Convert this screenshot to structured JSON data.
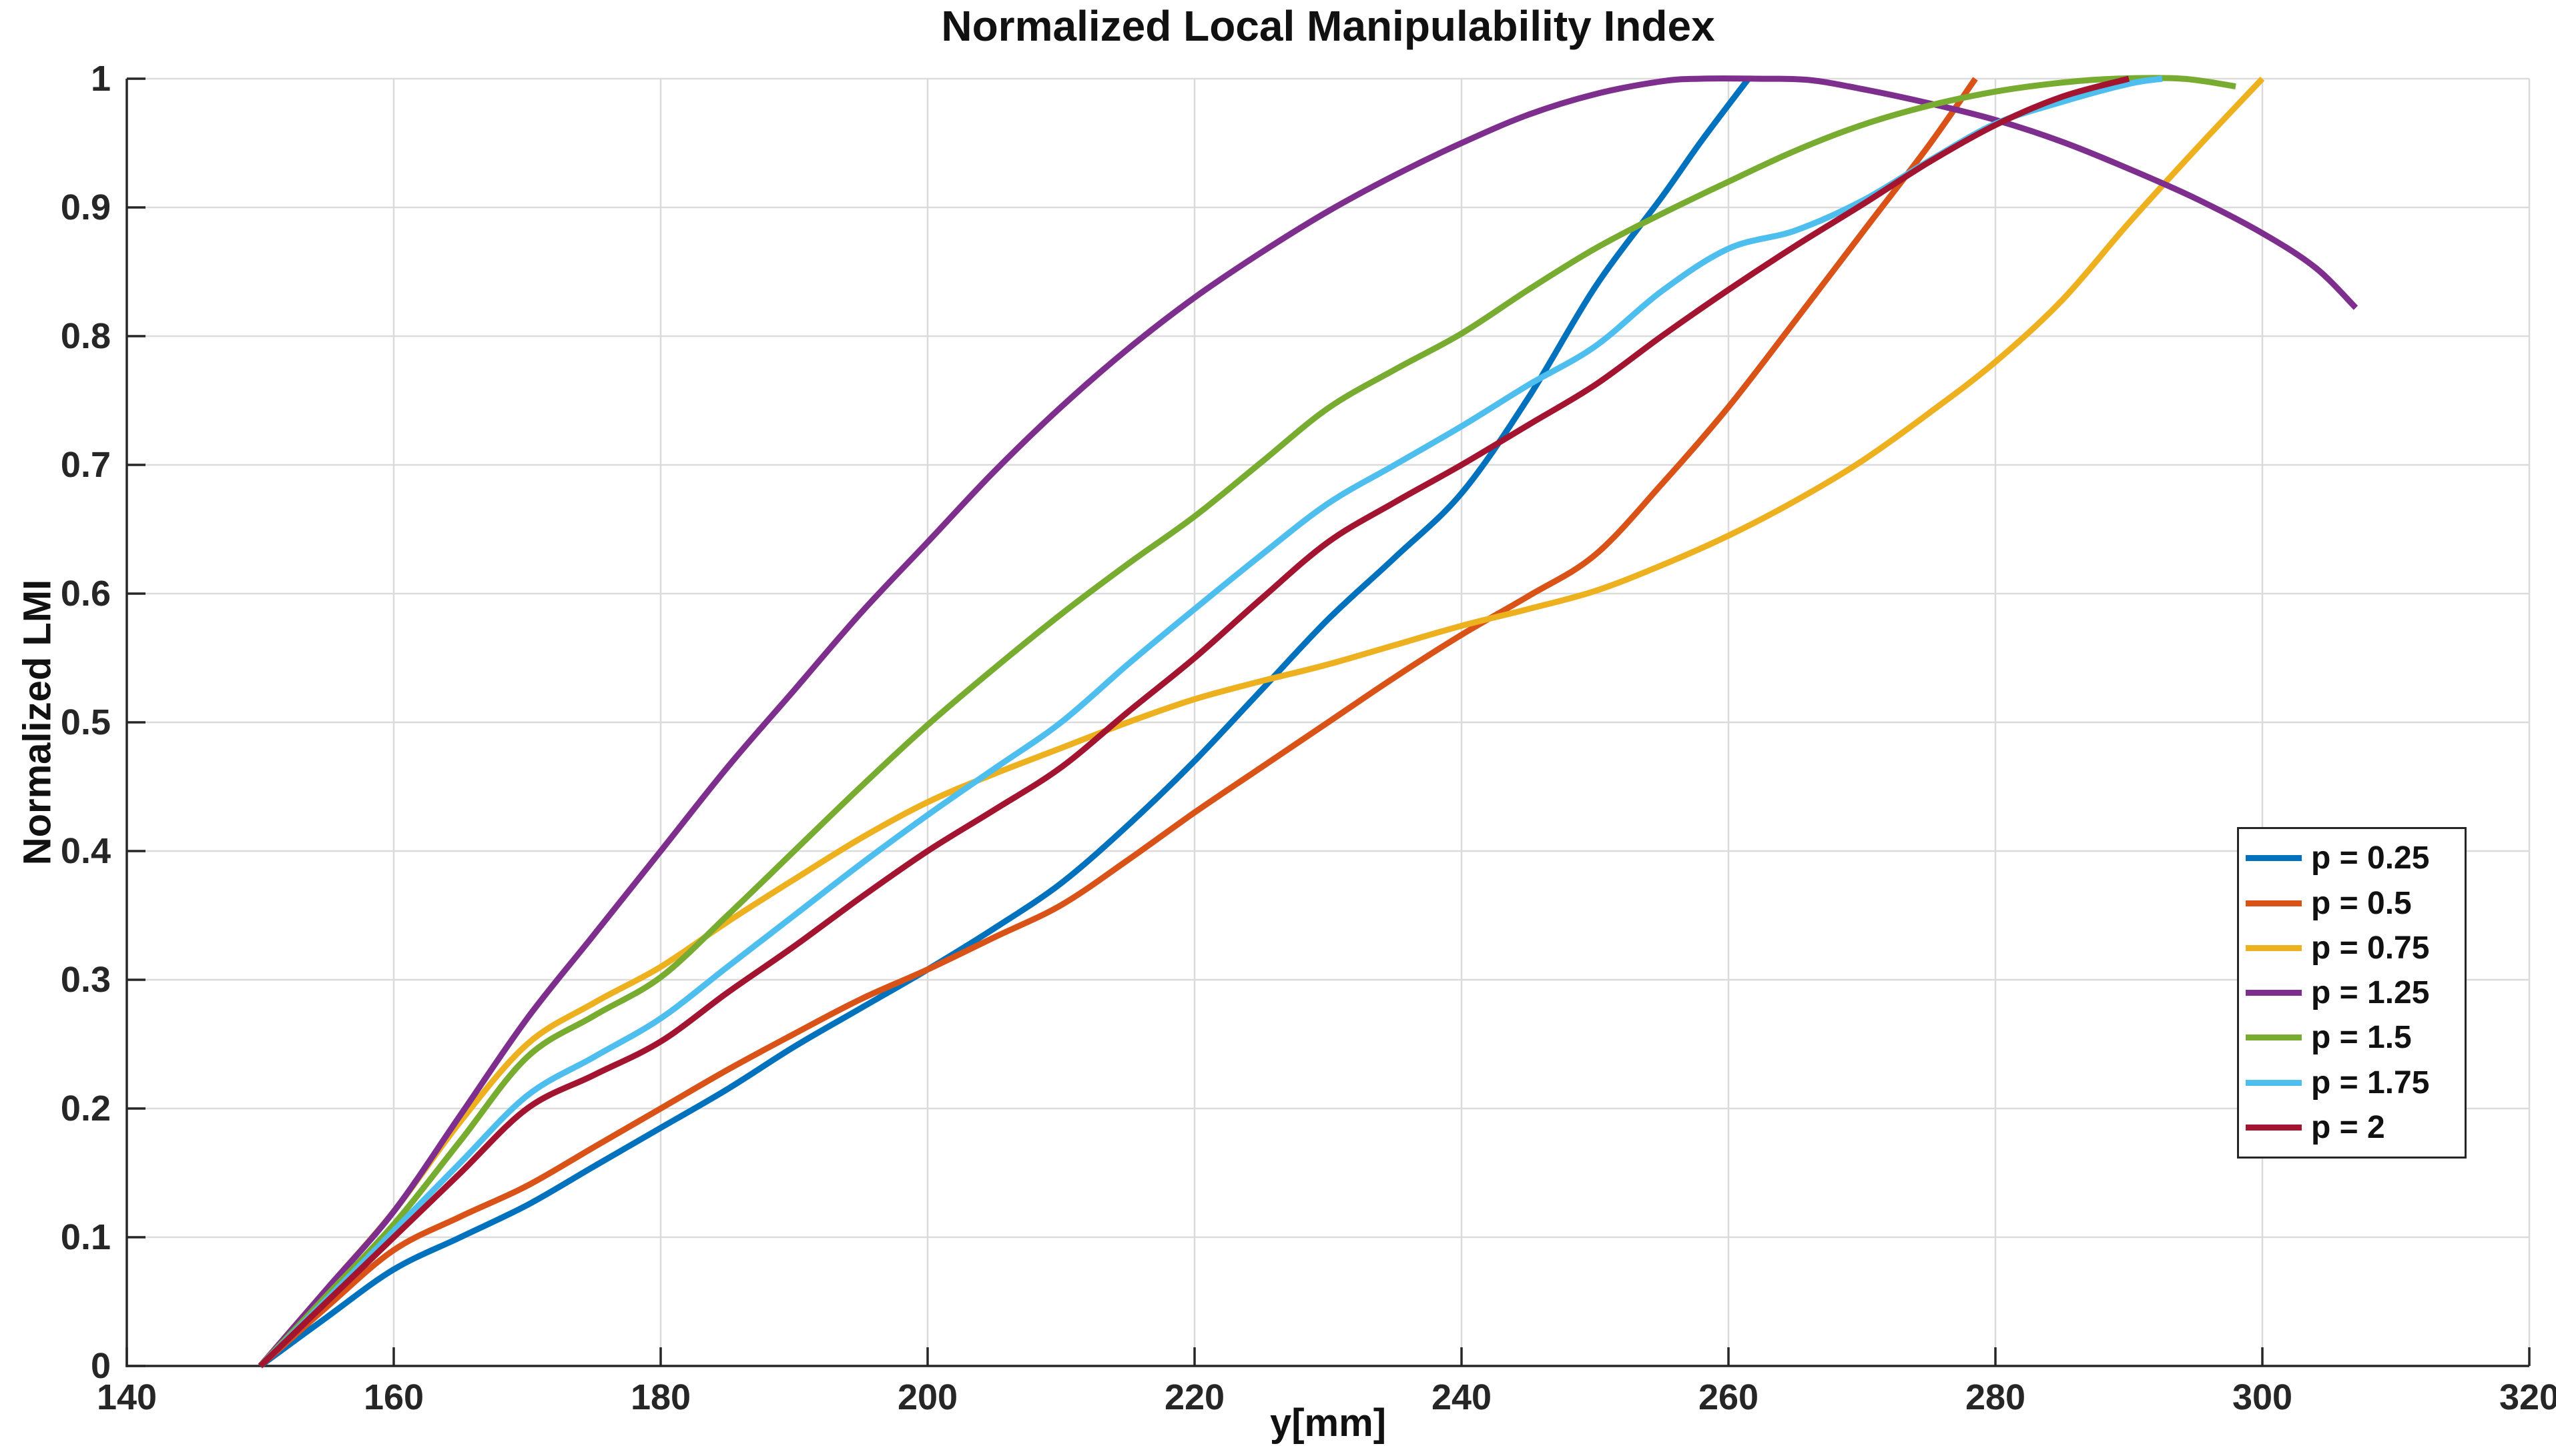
{
  "chart_data": {
    "type": "line",
    "title": "Normalized Local Manipulability Index",
    "xlabel": "y[mm]",
    "ylabel": "Normalized LMI",
    "xlim": [
      140,
      320
    ],
    "ylim": [
      0,
      1
    ],
    "x_ticks": [
      140,
      160,
      180,
      200,
      220,
      240,
      260,
      280,
      300,
      320
    ],
    "x_tick_labels": [
      "140",
      "160",
      "180",
      "200",
      "220",
      "240",
      "260",
      "280",
      "300",
      "320"
    ],
    "y_ticks": [
      0,
      0.1,
      0.2,
      0.3,
      0.4,
      0.5,
      0.6,
      0.7,
      0.8,
      0.9,
      1
    ],
    "y_tick_labels": [
      "0",
      "0.1",
      "0.2",
      "0.3",
      "0.4",
      "0.5",
      "0.6",
      "0.7",
      "0.8",
      "0.9",
      "1"
    ],
    "grid": true,
    "legend_position": "inside lower right",
    "series": [
      {
        "name": "p = 0.25",
        "color": "#0072BD",
        "points": [
          [
            150,
            0
          ],
          [
            155,
            0.038
          ],
          [
            160,
            0.075
          ],
          [
            165,
            0.1
          ],
          [
            170,
            0.125
          ],
          [
            175,
            0.155
          ],
          [
            180,
            0.185
          ],
          [
            185,
            0.215
          ],
          [
            190,
            0.248
          ],
          [
            195,
            0.278
          ],
          [
            200,
            0.308
          ],
          [
            205,
            0.34
          ],
          [
            210,
            0.375
          ],
          [
            215,
            0.42
          ],
          [
            220,
            0.47
          ],
          [
            225,
            0.525
          ],
          [
            230,
            0.58
          ],
          [
            235,
            0.628
          ],
          [
            240,
            0.678
          ],
          [
            245,
            0.752
          ],
          [
            250,
            0.838
          ],
          [
            255,
            0.908
          ],
          [
            258,
            0.952
          ],
          [
            261.5,
            1.0
          ]
        ]
      },
      {
        "name": "p = 0.5",
        "color": "#D95319",
        "points": [
          [
            150,
            0
          ],
          [
            155,
            0.046
          ],
          [
            160,
            0.09
          ],
          [
            165,
            0.116
          ],
          [
            170,
            0.14
          ],
          [
            175,
            0.17
          ],
          [
            180,
            0.2
          ],
          [
            185,
            0.23
          ],
          [
            190,
            0.258
          ],
          [
            195,
            0.285
          ],
          [
            200,
            0.308
          ],
          [
            205,
            0.333
          ],
          [
            210,
            0.358
          ],
          [
            215,
            0.393
          ],
          [
            220,
            0.43
          ],
          [
            225,
            0.465
          ],
          [
            230,
            0.5
          ],
          [
            235,
            0.535
          ],
          [
            240,
            0.568
          ],
          [
            245,
            0.598
          ],
          [
            250,
            0.63
          ],
          [
            255,
            0.685
          ],
          [
            260,
            0.745
          ],
          [
            265,
            0.812
          ],
          [
            270,
            0.88
          ],
          [
            275,
            0.948
          ],
          [
            278.5,
            1.0
          ]
        ]
      },
      {
        "name": "p = 0.75",
        "color": "#EDB120",
        "points": [
          [
            150,
            0
          ],
          [
            155,
            0.06
          ],
          [
            160,
            0.12
          ],
          [
            165,
            0.19
          ],
          [
            170,
            0.25
          ],
          [
            175,
            0.282
          ],
          [
            180,
            0.31
          ],
          [
            185,
            0.345
          ],
          [
            190,
            0.378
          ],
          [
            195,
            0.41
          ],
          [
            200,
            0.438
          ],
          [
            205,
            0.46
          ],
          [
            210,
            0.48
          ],
          [
            215,
            0.5
          ],
          [
            220,
            0.518
          ],
          [
            225,
            0.532
          ],
          [
            230,
            0.545
          ],
          [
            235,
            0.56
          ],
          [
            240,
            0.575
          ],
          [
            245,
            0.588
          ],
          [
            250,
            0.602
          ],
          [
            255,
            0.622
          ],
          [
            260,
            0.645
          ],
          [
            265,
            0.672
          ],
          [
            270,
            0.703
          ],
          [
            275,
            0.74
          ],
          [
            280,
            0.78
          ],
          [
            285,
            0.828
          ],
          [
            290,
            0.888
          ],
          [
            295,
            0.945
          ],
          [
            300,
            1.0
          ]
        ]
      },
      {
        "name": "p = 1.25",
        "color": "#7E2F8E",
        "points": [
          [
            150,
            0
          ],
          [
            155,
            0.06
          ],
          [
            160,
            0.12
          ],
          [
            165,
            0.195
          ],
          [
            170,
            0.27
          ],
          [
            175,
            0.335
          ],
          [
            180,
            0.4
          ],
          [
            185,
            0.465
          ],
          [
            190,
            0.525
          ],
          [
            195,
            0.585
          ],
          [
            200,
            0.64
          ],
          [
            205,
            0.695
          ],
          [
            210,
            0.745
          ],
          [
            215,
            0.79
          ],
          [
            220,
            0.83
          ],
          [
            225,
            0.865
          ],
          [
            230,
            0.897
          ],
          [
            235,
            0.925
          ],
          [
            240,
            0.95
          ],
          [
            245,
            0.972
          ],
          [
            250,
            0.988
          ],
          [
            255,
            0.998
          ],
          [
            258,
            1.0
          ],
          [
            262,
            1.0
          ],
          [
            266,
            0.999
          ],
          [
            270,
            0.992
          ],
          [
            275,
            0.981
          ],
          [
            280,
            0.968
          ],
          [
            285,
            0.951
          ],
          [
            290,
            0.93
          ],
          [
            295,
            0.907
          ],
          [
            300,
            0.88
          ],
          [
            304,
            0.853
          ],
          [
            307,
            0.822
          ]
        ]
      },
      {
        "name": "p = 1.5",
        "color": "#77AC30",
        "points": [
          [
            150,
            0
          ],
          [
            155,
            0.055
          ],
          [
            160,
            0.11
          ],
          [
            165,
            0.175
          ],
          [
            170,
            0.24
          ],
          [
            175,
            0.272
          ],
          [
            180,
            0.302
          ],
          [
            185,
            0.35
          ],
          [
            190,
            0.4
          ],
          [
            195,
            0.45
          ],
          [
            200,
            0.498
          ],
          [
            205,
            0.542
          ],
          [
            210,
            0.584
          ],
          [
            215,
            0.623
          ],
          [
            220,
            0.66
          ],
          [
            225,
            0.702
          ],
          [
            230,
            0.744
          ],
          [
            235,
            0.774
          ],
          [
            240,
            0.802
          ],
          [
            245,
            0.836
          ],
          [
            250,
            0.868
          ],
          [
            255,
            0.895
          ],
          [
            260,
            0.92
          ],
          [
            265,
            0.944
          ],
          [
            270,
            0.964
          ],
          [
            275,
            0.979
          ],
          [
            280,
            0.99
          ],
          [
            285,
            0.997
          ],
          [
            289,
            1.0
          ],
          [
            294,
            1.0
          ],
          [
            298,
            0.994
          ]
        ]
      },
      {
        "name": "p = 1.75",
        "color": "#4DBEEE",
        "points": [
          [
            150,
            0
          ],
          [
            155,
            0.052
          ],
          [
            160,
            0.105
          ],
          [
            165,
            0.158
          ],
          [
            170,
            0.21
          ],
          [
            175,
            0.24
          ],
          [
            180,
            0.27
          ],
          [
            185,
            0.31
          ],
          [
            190,
            0.35
          ],
          [
            195,
            0.39
          ],
          [
            200,
            0.428
          ],
          [
            205,
            0.464
          ],
          [
            210,
            0.5
          ],
          [
            215,
            0.545
          ],
          [
            220,
            0.588
          ],
          [
            225,
            0.63
          ],
          [
            230,
            0.67
          ],
          [
            235,
            0.7
          ],
          [
            240,
            0.73
          ],
          [
            245,
            0.762
          ],
          [
            250,
            0.792
          ],
          [
            255,
            0.835
          ],
          [
            260,
            0.868
          ],
          [
            265,
            0.882
          ],
          [
            270,
            0.905
          ],
          [
            275,
            0.936
          ],
          [
            280,
            0.965
          ],
          [
            285,
            0.982
          ],
          [
            290,
            0.996
          ],
          [
            292.5,
            1.0
          ]
        ]
      },
      {
        "name": "p = 2",
        "color": "#A2142F",
        "points": [
          [
            150,
            0
          ],
          [
            155,
            0.05
          ],
          [
            160,
            0.1
          ],
          [
            165,
            0.15
          ],
          [
            170,
            0.2
          ],
          [
            175,
            0.226
          ],
          [
            180,
            0.252
          ],
          [
            185,
            0.29
          ],
          [
            190,
            0.326
          ],
          [
            195,
            0.364
          ],
          [
            200,
            0.4
          ],
          [
            205,
            0.432
          ],
          [
            210,
            0.465
          ],
          [
            215,
            0.508
          ],
          [
            220,
            0.55
          ],
          [
            225,
            0.596
          ],
          [
            230,
            0.64
          ],
          [
            235,
            0.671
          ],
          [
            240,
            0.7
          ],
          [
            245,
            0.731
          ],
          [
            250,
            0.762
          ],
          [
            255,
            0.8
          ],
          [
            260,
            0.836
          ],
          [
            265,
            0.87
          ],
          [
            270,
            0.902
          ],
          [
            275,
            0.935
          ],
          [
            280,
            0.964
          ],
          [
            285,
            0.986
          ],
          [
            290,
            1.0
          ]
        ]
      }
    ]
  },
  "colors": {
    "background": "#FFFFFF",
    "axis": "#262626",
    "grid": "#DBDBDB",
    "text": "#111111"
  }
}
